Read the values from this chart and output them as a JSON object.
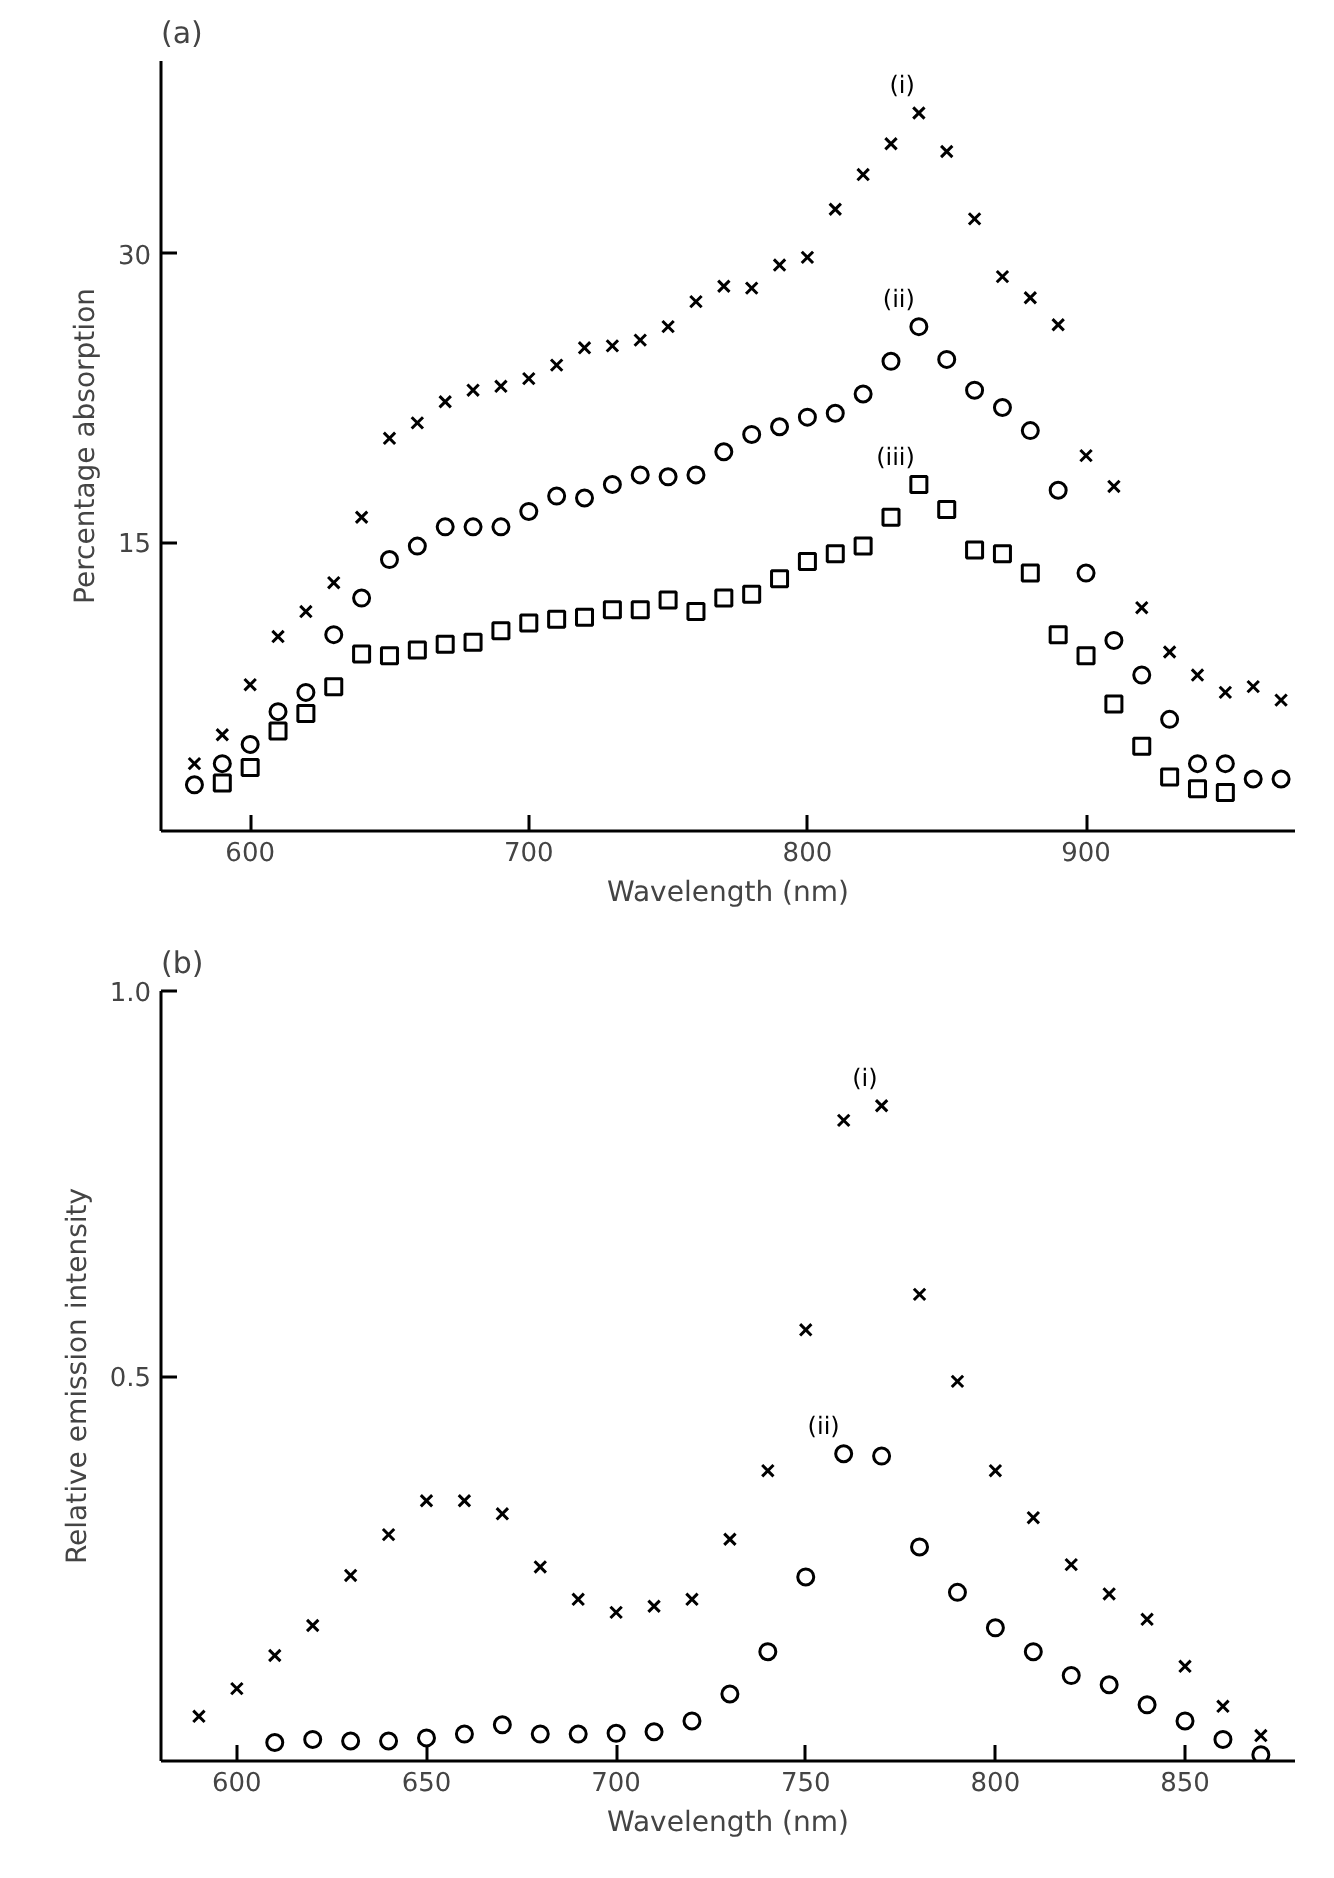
{
  "chart_data": [
    {
      "type": "scatter",
      "title": "(a)",
      "xlabel": "Wavelength (nm)",
      "ylabel": "Percentage absorption",
      "xlim": [
        568,
        975
      ],
      "ylim": [
        0,
        40
      ],
      "xticks": [
        600,
        700,
        800,
        900
      ],
      "yticks": [
        15,
        30
      ],
      "grid": false,
      "legend": false,
      "series": [
        {
          "name": "(i)",
          "color": "#000000",
          "marker": "cross",
          "x": [
            580,
            590,
            600,
            610,
            620,
            630,
            640,
            650,
            660,
            670,
            680,
            690,
            700,
            710,
            720,
            730,
            740,
            750,
            760,
            770,
            780,
            790,
            800,
            810,
            820,
            830,
            840,
            850,
            860,
            870,
            880,
            890,
            900,
            910,
            920,
            930,
            940,
            950,
            960,
            970
          ],
          "values": [
            3.5,
            5.0,
            7.6,
            10.1,
            11.4,
            12.9,
            16.3,
            20.4,
            21.2,
            22.3,
            22.9,
            23.1,
            23.5,
            24.2,
            25.1,
            25.2,
            25.5,
            26.2,
            27.5,
            28.3,
            28.2,
            29.4,
            29.8,
            32.3,
            34.1,
            35.7,
            37.3,
            35.3,
            31.8,
            28.8,
            27.7,
            26.3,
            19.5,
            17.9,
            11.6,
            9.3,
            8.1,
            7.2,
            7.5,
            6.8
          ]
        },
        {
          "name": "(ii)",
          "color": "#000000",
          "marker": "circle",
          "x": [
            580,
            590,
            600,
            610,
            620,
            630,
            640,
            650,
            660,
            670,
            680,
            690,
            700,
            710,
            720,
            730,
            740,
            750,
            760,
            770,
            780,
            790,
            800,
            810,
            820,
            830,
            840,
            850,
            860,
            870,
            880,
            890,
            900,
            910,
            920,
            930,
            940,
            950,
            960,
            970
          ],
          "values": [
            2.4,
            3.5,
            4.5,
            6.2,
            7.2,
            10.2,
            12.1,
            14.1,
            14.8,
            15.8,
            15.8,
            15.8,
            16.6,
            17.4,
            17.3,
            18.0,
            18.5,
            18.4,
            18.5,
            19.7,
            20.6,
            21.0,
            21.5,
            21.7,
            22.7,
            24.4,
            26.2,
            24.5,
            22.9,
            22.0,
            20.8,
            17.7,
            13.4,
            9.9,
            8.1,
            5.8,
            3.5,
            3.5,
            2.7,
            2.7
          ]
        },
        {
          "name": "(iii)",
          "color": "#000000",
          "marker": "square",
          "x": [
            590,
            600,
            610,
            620,
            630,
            640,
            650,
            660,
            670,
            680,
            690,
            700,
            710,
            720,
            730,
            740,
            750,
            760,
            770,
            780,
            790,
            800,
            810,
            820,
            830,
            840,
            850,
            860,
            870,
            880,
            890,
            900,
            910,
            920,
            930,
            940,
            950
          ],
          "values": [
            2.5,
            3.3,
            5.2,
            6.1,
            7.5,
            9.2,
            9.1,
            9.4,
            9.7,
            9.8,
            10.4,
            10.8,
            11.0,
            11.1,
            11.5,
            11.5,
            12.0,
            11.4,
            12.1,
            12.3,
            13.1,
            14.0,
            14.4,
            14.8,
            16.3,
            18.0,
            16.7,
            14.6,
            14.4,
            13.4,
            10.2,
            9.1,
            6.6,
            4.4,
            2.8,
            2.2,
            2.0
          ]
        }
      ]
    },
    {
      "type": "scatter",
      "title": "(b)",
      "xlabel": "Wavelength (nm)",
      "ylabel": "Relative emission intensity",
      "xlim": [
        580,
        879
      ],
      "ylim": [
        0,
        1
      ],
      "xticks": [
        600,
        650,
        700,
        750,
        800,
        850
      ],
      "yticks": [
        0.5,
        {
          "value": 1,
          "label": "1.0"
        }
      ],
      "grid": false,
      "legend": false,
      "series": [
        {
          "name": "(i)",
          "color": "#000000",
          "marker": "cross",
          "x": [
            590,
            600,
            610,
            620,
            630,
            640,
            650,
            660,
            670,
            680,
            690,
            700,
            710,
            720,
            730,
            740,
            750,
            760,
            770,
            780,
            790,
            800,
            810,
            820,
            830,
            840,
            850,
            860,
            870
          ],
          "values": [
            0.058,
            0.094,
            0.137,
            0.176,
            0.241,
            0.294,
            0.338,
            0.338,
            0.321,
            0.252,
            0.21,
            0.193,
            0.201,
            0.21,
            0.288,
            0.377,
            0.56,
            0.832,
            0.851,
            0.606,
            0.493,
            0.377,
            0.316,
            0.255,
            0.217,
            0.184,
            0.123,
            0.071,
            0.033
          ]
        },
        {
          "name": "(ii)",
          "color": "#000000",
          "marker": "circle",
          "x": [
            610,
            620,
            630,
            640,
            650,
            660,
            670,
            680,
            690,
            700,
            710,
            720,
            730,
            740,
            750,
            760,
            770,
            780,
            790,
            800,
            810,
            820,
            830,
            840,
            850,
            860,
            870
          ],
          "values": [
            0.024,
            0.028,
            0.026,
            0.026,
            0.03,
            0.035,
            0.047,
            0.035,
            0.035,
            0.036,
            0.038,
            0.052,
            0.087,
            0.142,
            0.239,
            0.399,
            0.396,
            0.278,
            0.219,
            0.173,
            0.142,
            0.111,
            0.099,
            0.073,
            0.052,
            0.028,
            0.008
          ]
        }
      ]
    }
  ]
}
